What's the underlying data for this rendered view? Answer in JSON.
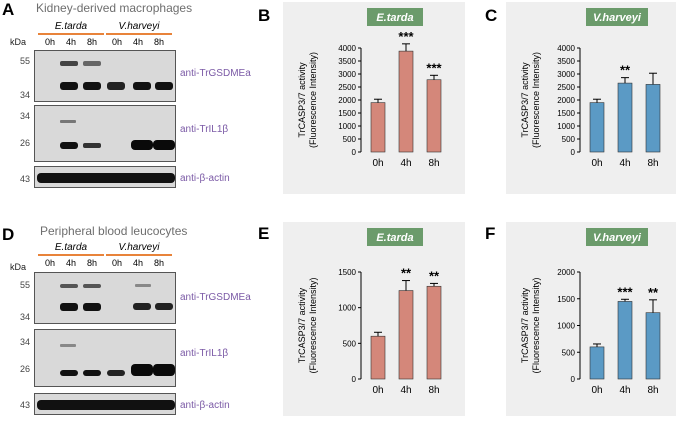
{
  "panels": {
    "A": {
      "label": "A",
      "title": "Kidney-derived macrophages",
      "kda": "kDa",
      "groups": [
        "E.tarda",
        "V.harveyi"
      ],
      "lanes": [
        "0h",
        "4h",
        "8h",
        "0h",
        "4h",
        "8h"
      ],
      "blots": [
        {
          "markers": [
            "55",
            "34"
          ],
          "antibody": "anti-TrGSDMEa"
        },
        {
          "markers": [
            "34",
            "26"
          ],
          "antibody": "anti-TrIL1β"
        },
        {
          "markers": [
            "43"
          ],
          "antibody": "anti-β-actin"
        }
      ]
    },
    "D": {
      "label": "D",
      "title": "Peripheral blood leucocytes",
      "kda": "kDa",
      "groups": [
        "E.tarda",
        "V.harveyi"
      ],
      "lanes": [
        "0h",
        "4h",
        "8h",
        "0h",
        "4h",
        "8h"
      ],
      "blots": [
        {
          "markers": [
            "55",
            "34"
          ],
          "antibody": "anti-TrGSDMEa"
        },
        {
          "markers": [
            "34",
            "26"
          ],
          "antibody": "anti-TrIL1β"
        },
        {
          "markers": [
            "43"
          ],
          "antibody": "anti-β-actin"
        }
      ]
    }
  },
  "chart_data": [
    {
      "panel": "B",
      "type": "bar",
      "title": "E.tarda",
      "categories": [
        "0h",
        "4h",
        "8h"
      ],
      "values": [
        1900,
        3880,
        2780
      ],
      "errors": [
        130,
        280,
        170
      ],
      "significance": [
        "",
        "***",
        "***"
      ],
      "ylabel": "TrCASP3/7 activity\n(Fluorescence Intensity)",
      "ylim": [
        0,
        4000
      ],
      "yticks": [
        0,
        500,
        1000,
        1500,
        2000,
        2500,
        3000,
        3500,
        4000
      ],
      "color": "#d4877a",
      "title_bg": "#6b9b6b"
    },
    {
      "panel": "C",
      "type": "bar",
      "title": "V.harveyi",
      "categories": [
        "0h",
        "4h",
        "8h"
      ],
      "values": [
        1900,
        2650,
        2600
      ],
      "errors": [
        130,
        210,
        430
      ],
      "significance": [
        "",
        "**",
        ""
      ],
      "ylabel": "TrCASP3/7 activity\n(Fluorescence Intensity)",
      "ylim": [
        0,
        4000
      ],
      "yticks": [
        0,
        500,
        1000,
        1500,
        2000,
        2500,
        3000,
        3500,
        4000
      ],
      "color": "#5b9ac5",
      "title_bg": "#6b9b6b"
    },
    {
      "panel": "E",
      "type": "bar",
      "title": "E.tarda",
      "categories": [
        "0h",
        "4h",
        "8h"
      ],
      "values": [
        600,
        1240,
        1300
      ],
      "errors": [
        55,
        140,
        40
      ],
      "significance": [
        "",
        "**",
        "**"
      ],
      "ylabel": "TrCASP3/7 activity\n(Fluorescence Intensity)",
      "ylim": [
        0,
        1500
      ],
      "yticks": [
        0,
        500,
        1000,
        1500
      ],
      "color": "#d4877a",
      "title_bg": "#6b9b6b"
    },
    {
      "panel": "F",
      "type": "bar",
      "title": "V.harveyi",
      "categories": [
        "0h",
        "4h",
        "8h"
      ],
      "values": [
        600,
        1450,
        1240
      ],
      "errors": [
        55,
        40,
        240
      ],
      "significance": [
        "",
        "***",
        "**"
      ],
      "ylabel": "TrCASP3/7 activity\n(Fluorescence Intensity)",
      "ylim": [
        0,
        2000
      ],
      "yticks": [
        0,
        500,
        1000,
        1500,
        2000
      ],
      "color": "#5b9ac5",
      "title_bg": "#6b9b6b"
    }
  ]
}
